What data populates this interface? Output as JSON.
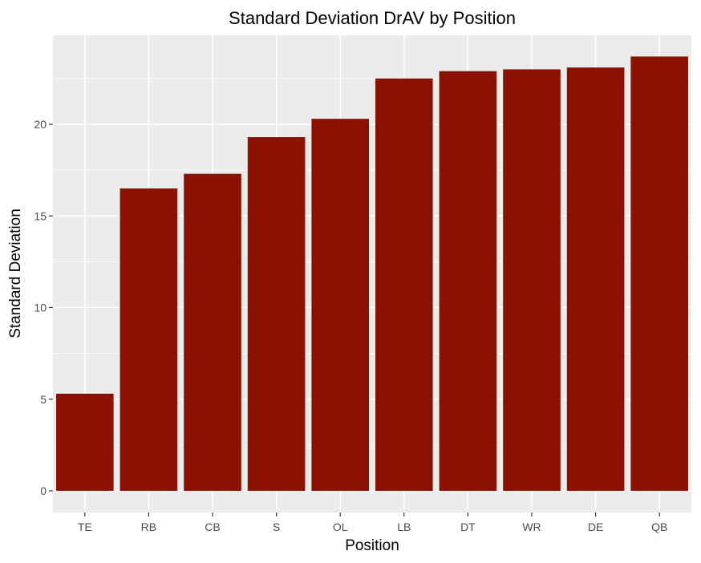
{
  "chart_data": {
    "type": "bar",
    "title": "Standard Deviation DrAV by Position",
    "xlabel": "Position",
    "ylabel": "Standard Deviation",
    "categories": [
      "TE",
      "RB",
      "CB",
      "S",
      "OL",
      "LB",
      "DT",
      "WR",
      "DE",
      "QB"
    ],
    "values": [
      5.3,
      16.5,
      17.3,
      19.3,
      20.3,
      22.5,
      22.9,
      23.0,
      23.1,
      23.7
    ],
    "ylim": [
      0,
      24.9
    ],
    "yticks": [
      0,
      5,
      10,
      15,
      20
    ],
    "ytick_labels": [
      "0",
      "5",
      "10",
      "15",
      "20"
    ],
    "grid": true,
    "colors": {
      "bar": "#8b1200",
      "panel": "#ebebeb",
      "grid": "#ffffff"
    }
  }
}
